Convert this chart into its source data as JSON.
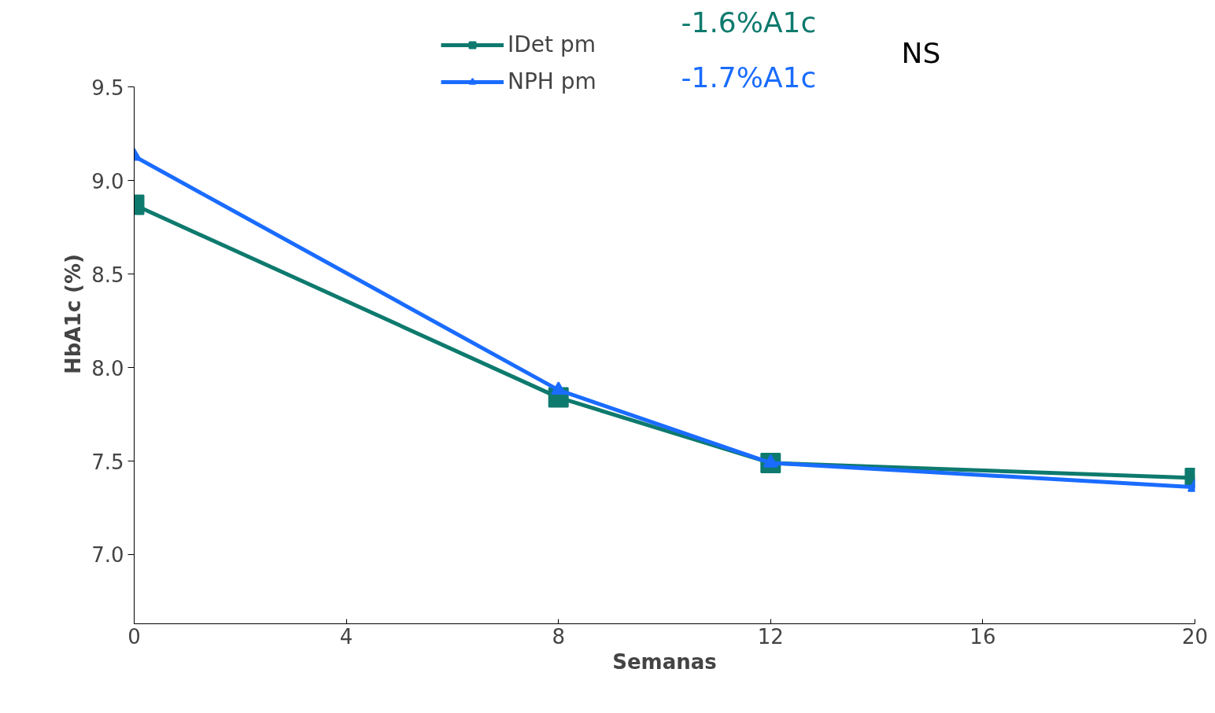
{
  "chart_data": {
    "type": "line",
    "xlabel": "Semanas",
    "ylabel": "HbA1c (%)",
    "x": [
      0,
      8,
      12,
      20
    ],
    "series": [
      {
        "name": "IDet pm",
        "color": "#0e7a6e",
        "marker": "square",
        "values": [
          8.87,
          7.84,
          7.49,
          7.41
        ]
      },
      {
        "name": "NPH pm",
        "color": "#1a6cff",
        "marker": "triangle",
        "values": [
          9.13,
          7.88,
          7.49,
          7.36
        ]
      }
    ],
    "xlim": [
      0,
      20
    ],
    "xticks": [
      0,
      4,
      8,
      12,
      16,
      20
    ],
    "ylim": [
      6.63,
      9.5
    ],
    "yticks": [
      {
        "value": 7.0,
        "label": "7.0"
      },
      {
        "value": 7.5,
        "label": "7.5"
      },
      {
        "value": 8.0,
        "label": "8.0"
      },
      {
        "value": 8.5,
        "label": "8.5"
      },
      {
        "value": 9.0,
        "label": "9.0"
      },
      {
        "value": 9.5,
        "label": "9.5"
      }
    ],
    "annotations": [
      "-1.6%A1c",
      "-1.7%A1c",
      "NS"
    ],
    "grid": false,
    "legend": "top",
    "line_style": "solid"
  }
}
